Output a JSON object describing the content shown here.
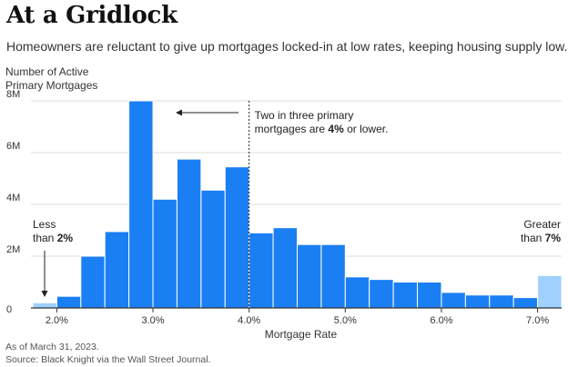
{
  "title": "At a Gridlock",
  "subtitle": "Homeowners are reluctant to give up mortgages locked-in at low rates, keeping housing supply low.",
  "ylabel_lines": [
    "Number of Active",
    "Primary Mortgages"
  ],
  "footnote_lines": [
    "As of March 31, 2023.",
    "Source: Black Knight via the Wall Street Journal."
  ],
  "colors": {
    "bar": "#1a7ff2",
    "highlight": "#9fd1ff",
    "grid": "#dddddd",
    "axis": "#333333"
  },
  "chart_data": {
    "type": "bar",
    "xlabel": "Mortgage Rate",
    "ylim": [
      0,
      8
    ],
    "y_unit": "millions",
    "yticks": [
      0,
      2,
      4,
      6,
      8
    ],
    "ytick_labels": [
      "0",
      "2M",
      "4M",
      "6M",
      "8M"
    ],
    "xticks": [
      2.0,
      3.0,
      4.0,
      5.0,
      6.0,
      7.0
    ],
    "xtick_labels": [
      "2.0%",
      "3.0%",
      "4.0%",
      "5.0%",
      "6.0%",
      "7.0%"
    ],
    "bin_width": 0.25,
    "bars": [
      {
        "label": "Less than 2%",
        "value": 0.2,
        "highlight": true
      },
      {
        "x": 2.0,
        "value": 0.45
      },
      {
        "x": 2.25,
        "value": 2.0
      },
      {
        "x": 2.5,
        "value": 2.95
      },
      {
        "x": 2.75,
        "value": 8.0
      },
      {
        "x": 3.0,
        "value": 4.2
      },
      {
        "x": 3.25,
        "value": 5.75
      },
      {
        "x": 3.5,
        "value": 4.55
      },
      {
        "x": 3.75,
        "value": 5.45
      },
      {
        "x": 4.0,
        "value": 2.9
      },
      {
        "x": 4.25,
        "value": 3.1
      },
      {
        "x": 4.5,
        "value": 2.45
      },
      {
        "x": 4.75,
        "value": 2.45
      },
      {
        "x": 5.0,
        "value": 1.2
      },
      {
        "x": 5.25,
        "value": 1.1
      },
      {
        "x": 5.5,
        "value": 1.0
      },
      {
        "x": 5.75,
        "value": 1.0
      },
      {
        "x": 6.0,
        "value": 0.6
      },
      {
        "x": 6.25,
        "value": 0.5
      },
      {
        "x": 6.5,
        "value": 0.5
      },
      {
        "x": 6.75,
        "value": 0.4
      },
      {
        "label": "Greater than 7%",
        "value": 1.25,
        "highlight": true
      }
    ],
    "annotations": {
      "middle": {
        "lines": [
          "Two in three primary",
          "mortgages are 4% or lower."
        ],
        "bold": "4%",
        "divider_x": 4.0
      },
      "left": {
        "lines": [
          "Less",
          "than 2%"
        ],
        "bold": "2%"
      },
      "right": {
        "lines": [
          "Greater",
          "than 7%"
        ],
        "bold": "7%"
      }
    }
  }
}
